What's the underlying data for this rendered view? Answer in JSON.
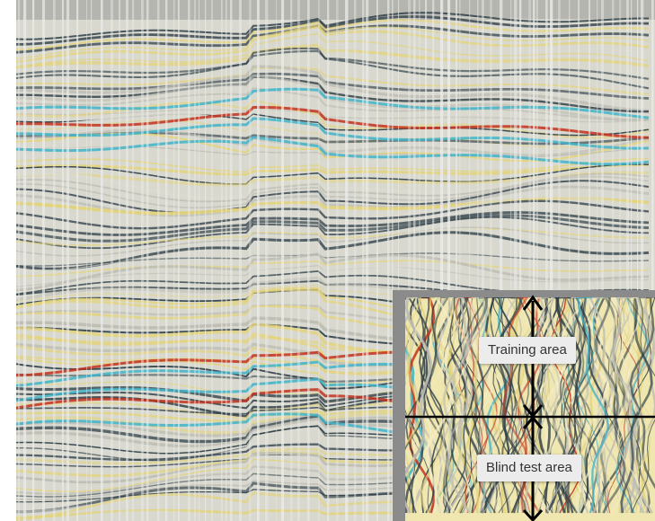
{
  "image": {
    "description_type": "seismic section with inset time/depth slice",
    "palette": {
      "background": "#ffffff",
      "trace_light": "#d9d9cf",
      "trace_gray": "#bdbdb4",
      "dark_blue_gray": "#2f3f47",
      "yellow": "#e3d37a",
      "red": "#c4311c",
      "cyan": "#3fb4c9",
      "frame_gray": "#8a8a8a"
    }
  },
  "inset": {
    "training_label": "Training area",
    "blind_label": "Blind test area"
  }
}
